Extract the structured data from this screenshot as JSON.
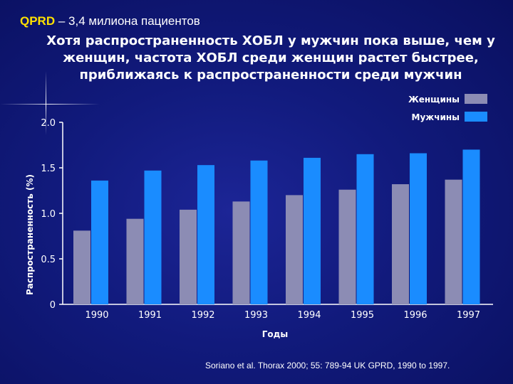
{
  "header": {
    "org": "QPRD",
    "subtitle": " – 3,4 милиона пациентов"
  },
  "title_lines": [
    "Хотя распространенность ХОБЛ у мужчин пока выше, чем у",
    "женщин, частота ХОБЛ среди женщин растет быстрее,",
    "приближаясь к распространенности среди мужчин"
  ],
  "source": "Soriano et al. Thorax 2000; 55: 789-94 UK GPRD, 1990 to 1997.",
  "colors": {
    "women": "#8c8cb4",
    "men": "#1a8cff",
    "org_highlight": "#ffe100"
  },
  "chart_data": {
    "type": "bar",
    "categories": [
      "1990",
      "1991",
      "1992",
      "1993",
      "1994",
      "1995",
      "1996",
      "1997"
    ],
    "series": [
      {
        "name": "Женщины",
        "values": [
          0.81,
          0.94,
          1.04,
          1.13,
          1.2,
          1.26,
          1.32,
          1.37
        ]
      },
      {
        "name": "Мужчины",
        "values": [
          1.36,
          1.47,
          1.53,
          1.58,
          1.61,
          1.65,
          1.66,
          1.7
        ]
      }
    ],
    "yticks": [
      "0",
      "0.5",
      "1.0",
      "1.5",
      "2.0"
    ],
    "ytick_values": [
      0,
      0.5,
      1.0,
      1.5,
      2.0
    ],
    "xlabel": "Годы",
    "ylabel": "Распространенность (%)",
    "ylim": [
      0,
      2.0
    ],
    "legend_position": "top-right"
  }
}
